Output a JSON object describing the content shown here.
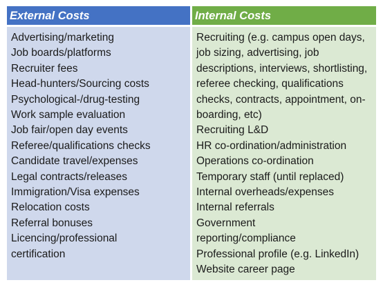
{
  "external": {
    "title": "External Costs",
    "items": [
      "Advertising/marketing",
      "Job boards/platforms",
      "Recruiter fees",
      "Head-hunters/Sourcing costs",
      "Psychological-/drug-testing",
      "Work sample evaluation",
      "Job fair/open day events",
      "Referee/qualifications checks",
      "Candidate travel/expenses",
      "Legal contracts/releases",
      "Immigration/Visa expenses",
      "Relocation costs",
      "Referral bonuses",
      "Licencing/professional certification"
    ]
  },
  "internal": {
    "title": "Internal Costs",
    "items": [
      "Recruiting (e.g. campus open days, job sizing, advertising, job descriptions, interviews, shortlisting, referee checking, qualifications checks, contracts, appointment, on-boarding, etc)",
      "Recruiting L&D",
      "HR co-ordination/administration",
      "Operations co-ordination",
      "Temporary staff (until replaced)",
      "Internal overheads/expenses",
      "Internal referrals",
      "Government reporting/compliance",
      "Professional profile (e.g. LinkedIn)",
      "Website career page"
    ]
  },
  "colors": {
    "external_header": "#4472c4",
    "external_body": "#cfd8ec",
    "internal_header": "#70ad47",
    "internal_body": "#dbe9d3"
  }
}
